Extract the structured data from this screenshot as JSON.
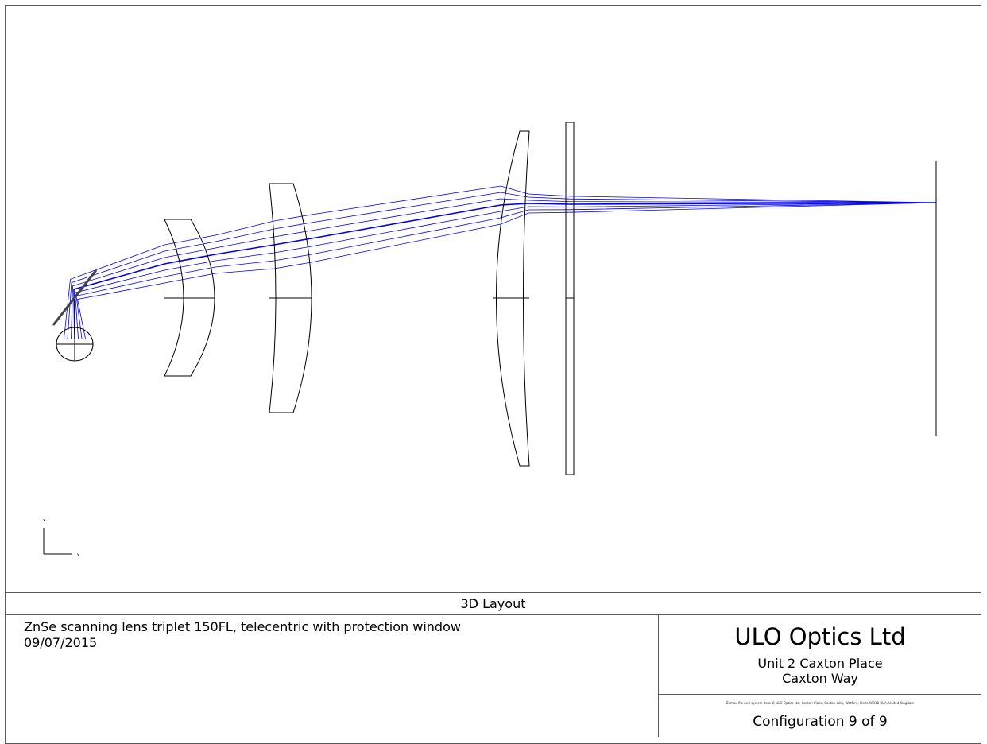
{
  "diagram": {
    "title": "3D Layout",
    "axis_labels": {
      "vertical": "x",
      "horizontal": "y"
    },
    "ray_color": "#0000ee",
    "line_color": "#000000"
  },
  "title_block": {
    "description": "ZnSe scanning lens triplet 150FL, telecentric with protection window",
    "date": "09/07/2015",
    "company_name": "ULO Optics Ltd",
    "address_line1": "Unit 2 Caxton Place",
    "address_line2": "Caxton Way",
    "fine_print": "Zemax file and system data © ULO Optics Ltd, Caxton Place, Caxton Way, Watford, Herts WD18 8UA, United Kingdom",
    "configuration": "Configuration 9 of 9"
  }
}
